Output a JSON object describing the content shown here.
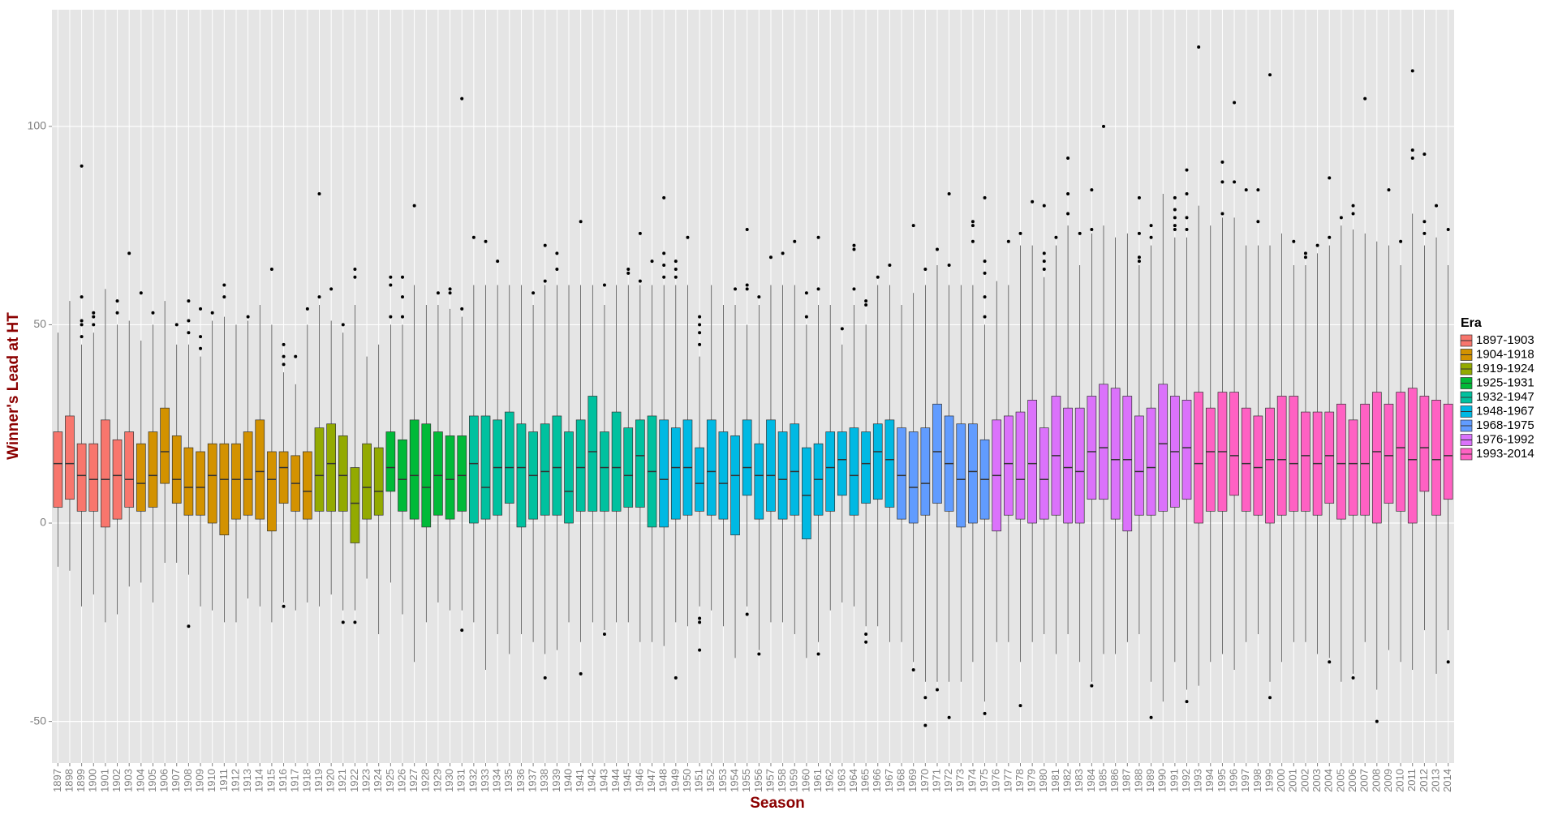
{
  "chart_data": {
    "type": "boxplot",
    "x_label": "Season",
    "y_label": "Winner's Lead at HT",
    "legend_title": "Era",
    "legend_position": "right",
    "grid": true,
    "ylim": [
      -60.5,
      129.4
    ],
    "yticks": [
      -50,
      0,
      50,
      100
    ],
    "series": [
      {
        "name": "1897-1903",
        "color": "#F8766D",
        "categories": [
          "1897",
          "1898",
          "1899",
          "1900",
          "1901",
          "1902",
          "1903"
        ],
        "low": [
          -11,
          -12,
          -21,
          -18,
          -25,
          -23,
          -16
        ],
        "q1": [
          4,
          6,
          3,
          3,
          -1,
          1,
          4
        ],
        "median": [
          15,
          15,
          12,
          11,
          11,
          12,
          11
        ],
        "q3": [
          23,
          27,
          20,
          20,
          26,
          21,
          23
        ],
        "high": [
          48,
          56,
          45,
          48,
          59,
          50,
          51
        ],
        "outliers": [
          [],
          [],
          [
            90,
            57,
            51,
            50,
            47
          ],
          [
            53,
            52,
            50
          ],
          [],
          [
            56,
            53
          ],
          [
            68
          ]
        ]
      },
      {
        "name": "1904-1918",
        "color": "#D39200",
        "categories": [
          "1904",
          "1905",
          "1906",
          "1907",
          "1908",
          "1909",
          "1910",
          "1911",
          "1912",
          "1913",
          "1914",
          "1915",
          "1916",
          "1917",
          "1918"
        ],
        "low": [
          -15,
          -20,
          -10,
          -10,
          -13,
          -21,
          -22,
          -25,
          -25,
          -19,
          -21,
          -25,
          -20,
          -22,
          -20
        ],
        "q1": [
          3,
          4,
          10,
          5,
          2,
          2,
          0,
          -3,
          1,
          2,
          1,
          -2,
          5,
          3,
          1
        ],
        "median": [
          10,
          12,
          18,
          11,
          9,
          9,
          12,
          11,
          11,
          11,
          13,
          11,
          14,
          10,
          8
        ],
        "q3": [
          20,
          23,
          29,
          22,
          19,
          18,
          20,
          20,
          20,
          23,
          26,
          18,
          18,
          17,
          18
        ],
        "high": [
          46,
          50,
          56,
          45,
          45,
          42,
          51,
          52,
          50,
          51,
          55,
          50,
          38,
          35,
          50
        ],
        "outliers": [
          [
            58
          ],
          [
            53
          ],
          [],
          [
            50
          ],
          [
            56,
            51,
            48,
            -26
          ],
          [
            54,
            47,
            44
          ],
          [
            53
          ],
          [
            60,
            57
          ],
          [],
          [
            52
          ],
          [],
          [
            64
          ],
          [
            45,
            42,
            40,
            -21
          ],
          [
            42
          ],
          [
            54
          ]
        ]
      },
      {
        "name": "1919-1924",
        "color": "#93AA00",
        "categories": [
          "1919",
          "1920",
          "1921",
          "1922",
          "1923",
          "1924"
        ],
        "low": [
          -21,
          -18,
          -22,
          -22,
          -14,
          -28
        ],
        "q1": [
          3,
          3,
          3,
          -5,
          1,
          2
        ],
        "median": [
          12,
          15,
          12,
          5,
          9,
          8
        ],
        "q3": [
          24,
          25,
          22,
          14,
          20,
          19
        ],
        "high": [
          55,
          51,
          48,
          55,
          42,
          45
        ],
        "outliers": [
          [
            83,
            57
          ],
          [
            59
          ],
          [
            50,
            -25
          ],
          [
            64,
            62,
            -25
          ],
          [],
          []
        ]
      },
      {
        "name": "1925-1931",
        "color": "#00BA38",
        "categories": [
          "1925",
          "1926",
          "1927",
          "1928",
          "1929",
          "1930",
          "1931"
        ],
        "low": [
          -15,
          -23,
          -35,
          -25,
          -20,
          -22,
          -22
        ],
        "q1": [
          8,
          3,
          1,
          -1,
          2,
          1,
          3
        ],
        "median": [
          14,
          11,
          12,
          9,
          12,
          11,
          12
        ],
        "q3": [
          23,
          21,
          26,
          25,
          23,
          22,
          22
        ],
        "high": [
          50,
          50,
          60,
          55,
          55,
          54,
          52
        ],
        "outliers": [
          [
            62,
            60,
            52
          ],
          [
            62,
            57,
            52
          ],
          [
            80
          ],
          [],
          [
            58
          ],
          [
            59,
            58
          ],
          [
            107,
            54,
            -27
          ]
        ]
      },
      {
        "name": "1932-1947",
        "color": "#00C19F",
        "categories": [
          "1932",
          "1933",
          "1934",
          "1935",
          "1936",
          "1937",
          "1938",
          "1939",
          "1940",
          "1941",
          "1942",
          "1943",
          "1944",
          "1945",
          "1946",
          "1947"
        ],
        "low": [
          -25,
          -37,
          -28,
          -33,
          -28,
          -30,
          -33,
          -32,
          -25,
          -30,
          -25,
          -27,
          -25,
          -25,
          -30,
          -30
        ],
        "q1": [
          0,
          1,
          2,
          5,
          -1,
          1,
          2,
          2,
          0,
          3,
          3,
          3,
          3,
          4,
          4,
          -1
        ],
        "median": [
          15,
          9,
          14,
          14,
          14,
          12,
          13,
          14,
          8,
          14,
          18,
          14,
          14,
          12,
          17,
          13
        ],
        "q3": [
          27,
          27,
          26,
          28,
          25,
          23,
          25,
          27,
          23,
          26,
          32,
          23,
          28,
          24,
          26,
          27
        ],
        "high": [
          60,
          60,
          60,
          60,
          60,
          55,
          60,
          60,
          60,
          60,
          60,
          55,
          60,
          60,
          60,
          60
        ],
        "outliers": [
          [
            72
          ],
          [
            71
          ],
          [
            66
          ],
          [],
          [],
          [
            58
          ],
          [
            70,
            61,
            -39
          ],
          [
            68,
            64
          ],
          [],
          [
            76,
            -38
          ],
          [],
          [
            60,
            -28
          ],
          [],
          [
            64,
            63
          ],
          [
            73,
            61
          ],
          [
            66
          ]
        ]
      },
      {
        "name": "1948-1967",
        "color": "#00B9E3",
        "categories": [
          "1948",
          "1949",
          "1950",
          "1951",
          "1952",
          "1953",
          "1954",
          "1955",
          "1956",
          "1957",
          "1958",
          "1959",
          "1960",
          "1961",
          "1962",
          "1963",
          "1964",
          "1965",
          "1966",
          "1967"
        ],
        "low": [
          -31,
          -25,
          -26,
          -21,
          -22,
          -26,
          -34,
          -21,
          -32,
          -25,
          -25,
          -28,
          -34,
          -30,
          -22,
          -20,
          -21,
          -26,
          -26,
          -30
        ],
        "q1": [
          -1,
          1,
          2,
          3,
          2,
          1,
          -3,
          7,
          1,
          3,
          1,
          2,
          -4,
          2,
          3,
          7,
          2,
          5,
          6,
          4
        ],
        "median": [
          11,
          14,
          14,
          10,
          13,
          10,
          12,
          14,
          12,
          12,
          11,
          13,
          7,
          11,
          14,
          16,
          12,
          15,
          18,
          16
        ],
        "q3": [
          26,
          24,
          26,
          19,
          26,
          23,
          22,
          26,
          20,
          26,
          23,
          25,
          19,
          20,
          23,
          23,
          24,
          23,
          25,
          26
        ],
        "high": [
          60,
          60,
          60,
          42,
          60,
          55,
          55,
          50,
          55,
          60,
          60,
          60,
          50,
          55,
          55,
          45,
          55,
          50,
          60,
          60
        ],
        "outliers": [
          [
            82,
            68,
            65,
            62
          ],
          [
            66,
            64,
            62,
            -39
          ],
          [
            72
          ],
          [
            52,
            50,
            48,
            45,
            -24,
            -25,
            -32
          ],
          [],
          [],
          [
            59
          ],
          [
            74,
            60,
            59,
            -23
          ],
          [
            57,
            -33
          ],
          [
            67
          ],
          [
            68
          ],
          [
            71
          ],
          [
            58,
            52
          ],
          [
            72,
            59,
            -33
          ],
          [],
          [
            49
          ],
          [
            70,
            69,
            59
          ],
          [
            56,
            55,
            -28,
            -30
          ],
          [
            62
          ],
          [
            65
          ]
        ]
      },
      {
        "name": "1968-1975",
        "color": "#619CFF",
        "categories": [
          "1968",
          "1969",
          "1970",
          "1971",
          "1972",
          "1973",
          "1974",
          "1975"
        ],
        "low": [
          -30,
          -35,
          -40,
          -40,
          -40,
          -40,
          -35,
          -45
        ],
        "q1": [
          1,
          0,
          2,
          5,
          3,
          -1,
          0,
          1
        ],
        "median": [
          12,
          9,
          10,
          18,
          15,
          11,
          13,
          11
        ],
        "q3": [
          24,
          23,
          24,
          30,
          27,
          25,
          25,
          21
        ],
        "high": [
          55,
          58,
          60,
          65,
          60,
          60,
          60,
          50
        ],
        "outliers": [
          [],
          [
            75,
            -37
          ],
          [
            64,
            -44,
            -51
          ],
          [
            69,
            -42
          ],
          [
            83,
            65,
            -49
          ],
          [],
          [
            76,
            75,
            71
          ],
          [
            82,
            66,
            63,
            57,
            52,
            -48
          ]
        ]
      },
      {
        "name": "1976-1992",
        "color": "#DB72FB",
        "categories": [
          "1976",
          "1977",
          "1978",
          "1979",
          "1980",
          "1981",
          "1982",
          "1983",
          "1984",
          "1985",
          "1986",
          "1987",
          "1988",
          "1989",
          "1990",
          "1991",
          "1992"
        ],
        "low": [
          -30,
          -30,
          -35,
          -30,
          -28,
          -33,
          -28,
          -35,
          -40,
          -33,
          -33,
          -30,
          -28,
          -40,
          -45,
          -35,
          -42
        ],
        "q1": [
          -2,
          2,
          1,
          0,
          1,
          2,
          0,
          0,
          6,
          6,
          1,
          -2,
          2,
          2,
          3,
          4,
          6
        ],
        "median": [
          12,
          15,
          11,
          15,
          11,
          17,
          14,
          13,
          18,
          19,
          16,
          16,
          13,
          14,
          20,
          18,
          19
        ],
        "q3": [
          26,
          27,
          28,
          31,
          24,
          32,
          29,
          29,
          32,
          35,
          34,
          32,
          27,
          29,
          35,
          32,
          31
        ],
        "high": [
          61,
          60,
          70,
          70,
          62,
          70,
          75,
          65,
          73,
          75,
          72,
          73,
          65,
          70,
          83,
          72,
          72
        ],
        "outliers": [
          [],
          [
            71
          ],
          [
            73,
            -46
          ],
          [
            81
          ],
          [
            80,
            68,
            66,
            64
          ],
          [
            72
          ],
          [
            92,
            83,
            78
          ],
          [
            73
          ],
          [
            84,
            74,
            -41
          ],
          [
            100
          ],
          [],
          [],
          [
            82,
            73,
            67,
            66
          ],
          [
            75,
            72,
            -49
          ],
          [],
          [
            82,
            79,
            77,
            75,
            74
          ],
          [
            89,
            83,
            77,
            74,
            -45
          ]
        ]
      },
      {
        "name": "1993-2014",
        "color": "#FF61C3",
        "categories": [
          "1993",
          "1994",
          "1995",
          "1996",
          "1997",
          "1998",
          "1999",
          "2000",
          "2001",
          "2002",
          "2003",
          "2004",
          "2005",
          "2006",
          "2007",
          "2008",
          "2009",
          "2010",
          "2011",
          "2012",
          "2013",
          "2014"
        ],
        "low": [
          -41,
          -35,
          -33,
          -37,
          -30,
          -28,
          -40,
          -35,
          -30,
          -30,
          -33,
          -34,
          -40,
          -38,
          -30,
          -42,
          -32,
          -35,
          -37,
          -27,
          -38,
          -27
        ],
        "q1": [
          0,
          3,
          3,
          7,
          3,
          2,
          0,
          2,
          3,
          3,
          2,
          5,
          1,
          2,
          2,
          0,
          5,
          3,
          0,
          8,
          2,
          6
        ],
        "median": [
          15,
          18,
          18,
          17,
          15,
          14,
          16,
          16,
          15,
          17,
          15,
          17,
          15,
          15,
          15,
          18,
          17,
          19,
          16,
          19,
          16,
          17
        ],
        "q3": [
          33,
          29,
          33,
          33,
          29,
          27,
          29,
          32,
          32,
          28,
          28,
          28,
          30,
          26,
          30,
          33,
          30,
          33,
          34,
          32,
          31,
          30
        ],
        "high": [
          80,
          75,
          77,
          77,
          70,
          70,
          70,
          73,
          65,
          65,
          68,
          70,
          75,
          74,
          73,
          71,
          70,
          65,
          78,
          70,
          72,
          65
        ],
        "outliers": [
          [
            120
          ],
          [],
          [
            91,
            86,
            78
          ],
          [
            106,
            86
          ],
          [
            84
          ],
          [
            84,
            76
          ],
          [
            113,
            -44
          ],
          [],
          [
            71
          ],
          [
            68,
            67
          ],
          [
            70
          ],
          [
            87,
            72,
            -35
          ],
          [
            77
          ],
          [
            80,
            78,
            -39
          ],
          [
            107
          ],
          [
            -50
          ],
          [
            84
          ],
          [
            71
          ],
          [
            114,
            94,
            92
          ],
          [
            93,
            76,
            73
          ],
          [
            80
          ],
          [
            74,
            -35
          ]
        ]
      }
    ]
  }
}
